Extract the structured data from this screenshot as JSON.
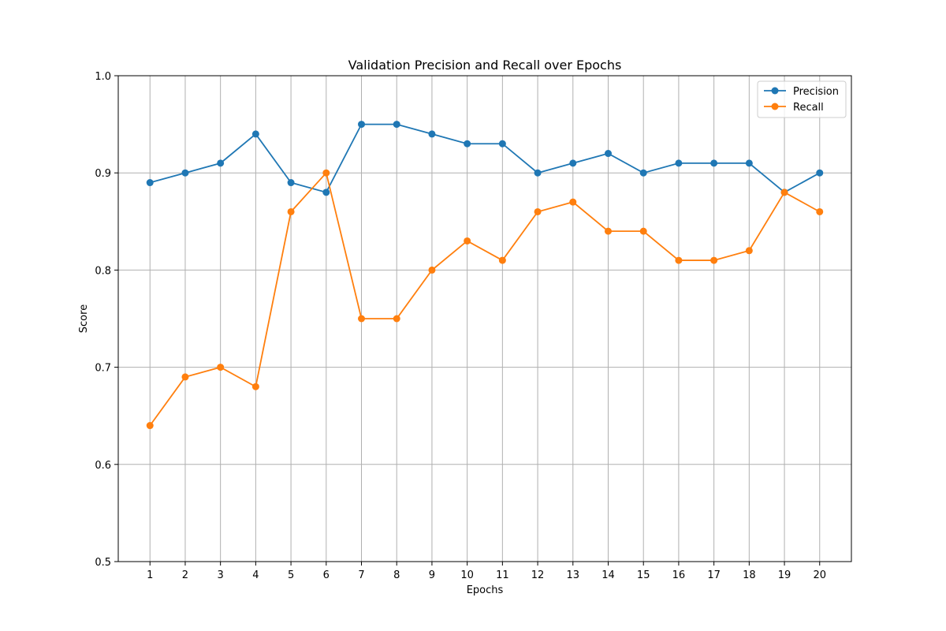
{
  "chart_data": {
    "type": "line",
    "title": "Validation Precision and Recall over Epochs",
    "xlabel": "Epochs",
    "ylabel": "Score",
    "x": [
      1,
      2,
      3,
      4,
      5,
      6,
      7,
      8,
      9,
      10,
      11,
      12,
      13,
      14,
      15,
      16,
      17,
      18,
      19,
      20
    ],
    "xlim": [
      0.1,
      20.9
    ],
    "ylim": [
      0.5,
      1.0
    ],
    "yticks": [
      0.5,
      0.6,
      0.7,
      0.8,
      0.9,
      1.0
    ],
    "ytick_labels": [
      "0.5",
      "0.6",
      "0.7",
      "0.8",
      "0.9",
      "1.0"
    ],
    "grid": true,
    "legend_position": "top-right",
    "series": [
      {
        "name": "Precision",
        "color": "#1f77b4",
        "values": [
          0.89,
          0.9,
          0.91,
          0.94,
          0.89,
          0.88,
          0.95,
          0.95,
          0.94,
          0.93,
          0.93,
          0.9,
          0.91,
          0.92,
          0.9,
          0.91,
          0.91,
          0.91,
          0.88,
          0.9
        ]
      },
      {
        "name": "Recall",
        "color": "#ff7f0e",
        "values": [
          0.64,
          0.69,
          0.7,
          0.68,
          0.86,
          0.9,
          0.75,
          0.75,
          0.8,
          0.83,
          0.81,
          0.86,
          0.87,
          0.84,
          0.84,
          0.81,
          0.81,
          0.82,
          0.88,
          0.86
        ]
      }
    ]
  }
}
